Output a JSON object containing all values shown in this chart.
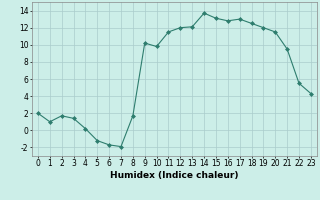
{
  "x": [
    0,
    1,
    2,
    3,
    4,
    5,
    6,
    7,
    8,
    9,
    10,
    11,
    12,
    13,
    14,
    15,
    16,
    17,
    18,
    19,
    20,
    21,
    22,
    23
  ],
  "y": [
    2,
    1,
    1.7,
    1.4,
    0.2,
    -1.2,
    -1.7,
    -1.9,
    1.7,
    10.2,
    9.8,
    11.5,
    12.0,
    12.1,
    13.7,
    13.1,
    12.8,
    13.0,
    12.5,
    12.0,
    11.5,
    9.5,
    5.5,
    4.3
  ],
  "line_color": "#2e7d6e",
  "marker": "D",
  "marker_size": 2,
  "bg_color": "#cceee8",
  "grid_color": "#aacccc",
  "xlabel": "Humidex (Indice chaleur)",
  "xlim": [
    -0.5,
    23.5
  ],
  "ylim": [
    -3,
    15
  ],
  "yticks": [
    -2,
    0,
    2,
    4,
    6,
    8,
    10,
    12,
    14
  ],
  "xticks": [
    0,
    1,
    2,
    3,
    4,
    5,
    6,
    7,
    8,
    9,
    10,
    11,
    12,
    13,
    14,
    15,
    16,
    17,
    18,
    19,
    20,
    21,
    22,
    23
  ],
  "xlabel_fontsize": 6.5,
  "tick_fontsize": 5.5
}
